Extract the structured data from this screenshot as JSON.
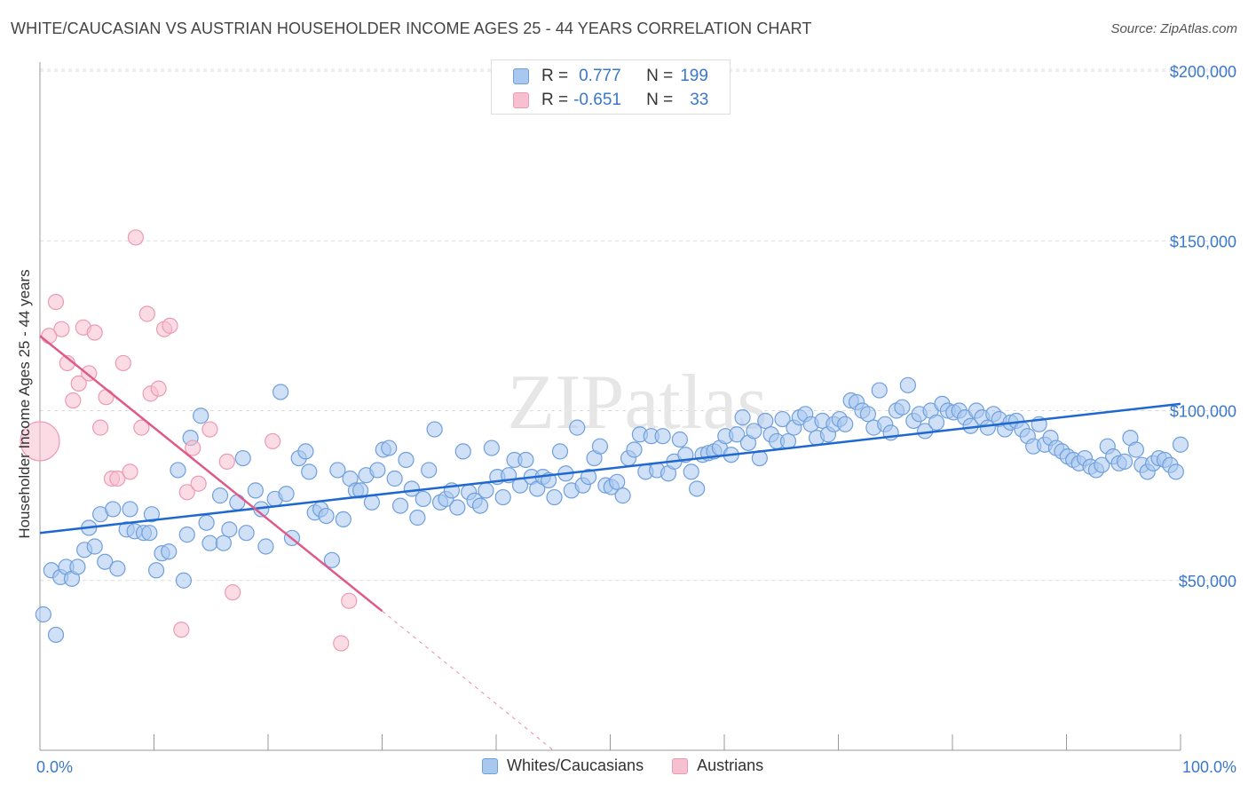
{
  "header": {
    "title": "WHITE/CAUCASIAN VS AUSTRIAN HOUSEHOLDER INCOME AGES 25 - 44 YEARS CORRELATION CHART",
    "source": "Source: ZipAtlas.com"
  },
  "legend": {
    "r_label": "R =",
    "n_label": "N =",
    "series": [
      {
        "r": "0.777",
        "n": "199"
      },
      {
        "r": "-0.651",
        "n": "33"
      }
    ]
  },
  "bottom_legend": [
    "Whites/Caucasians",
    "Austrians"
  ],
  "watermark": "ZIPatlas",
  "colors": {
    "blue_fill": "#a9c8f0",
    "blue_stroke": "#6f9fdc",
    "blue_line": "#1f68d0",
    "pink_fill": "#f7c0d0",
    "pink_stroke": "#ec9ab3",
    "pink_line": "#e05a88",
    "tick_text": "#3a78c9",
    "grid": "#dcdcdc"
  },
  "chart_data": {
    "type": "scatter",
    "title": "WHITE/CAUCASIAN VS AUSTRIAN HOUSEHOLDER INCOME AGES 25 - 44 YEARS CORRELATION CHART",
    "xlabel": "",
    "ylabel": "Householder Income Ages 25 - 44 years",
    "xlim": [
      0,
      100
    ],
    "ylim": [
      0,
      205000
    ],
    "x_tick_labels": [
      "0.0%",
      "100.0%"
    ],
    "y_ticks": [
      50000,
      100000,
      150000,
      200000
    ],
    "y_tick_labels": [
      "$50,000",
      "$100,000",
      "$150,000",
      "$200,000"
    ],
    "grid": true,
    "legend_position": "top-center",
    "series": [
      {
        "name": "Whites/Caucasians",
        "r": 0.777,
        "n": 199,
        "trend": {
          "x": [
            0,
            100
          ],
          "y": [
            64000,
            102000
          ]
        },
        "points": [
          [
            0.3,
            40000
          ],
          [
            1,
            53000
          ],
          [
            1.4,
            34000
          ],
          [
            1.8,
            51000
          ],
          [
            2.3,
            54000
          ],
          [
            2.8,
            50500
          ],
          [
            3.3,
            54000
          ],
          [
            3.9,
            59000
          ],
          [
            4.3,
            65500
          ],
          [
            4.8,
            60000
          ],
          [
            5.3,
            69500
          ],
          [
            5.7,
            55500
          ],
          [
            6.4,
            71000
          ],
          [
            6.8,
            53500
          ],
          [
            7.6,
            65000
          ],
          [
            7.9,
            71000
          ],
          [
            8.3,
            64500
          ],
          [
            9.1,
            64000
          ],
          [
            9.6,
            64000
          ],
          [
            9.8,
            69500
          ],
          [
            10.2,
            53000
          ],
          [
            10.7,
            58000
          ],
          [
            11.3,
            58500
          ],
          [
            12.1,
            82500
          ],
          [
            12.6,
            50000
          ],
          [
            12.9,
            63500
          ],
          [
            13.2,
            92000
          ],
          [
            14.1,
            98500
          ],
          [
            14.6,
            67000
          ],
          [
            14.9,
            61000
          ],
          [
            15.8,
            75000
          ],
          [
            16.1,
            61000
          ],
          [
            16.6,
            65000
          ],
          [
            17.3,
            73000
          ],
          [
            17.8,
            86000
          ],
          [
            18.1,
            64000
          ],
          [
            18.9,
            76500
          ],
          [
            19.4,
            71000
          ],
          [
            19.8,
            60000
          ],
          [
            20.6,
            74000
          ],
          [
            21.1,
            105500
          ],
          [
            21.6,
            75500
          ],
          [
            22.1,
            62500
          ],
          [
            22.7,
            86000
          ],
          [
            23.3,
            88000
          ],
          [
            23.6,
            82000
          ],
          [
            24.1,
            70000
          ],
          [
            24.6,
            71000
          ],
          [
            25.1,
            69000
          ],
          [
            25.6,
            56000
          ],
          [
            26.1,
            82500
          ],
          [
            26.6,
            68000
          ],
          [
            27.2,
            80000
          ],
          [
            27.7,
            76500
          ],
          [
            28.1,
            76500
          ],
          [
            28.6,
            81000
          ],
          [
            29.1,
            73000
          ],
          [
            29.6,
            82500
          ],
          [
            30.1,
            88500
          ],
          [
            30.6,
            89000
          ],
          [
            31.1,
            80000
          ],
          [
            31.6,
            72000
          ],
          [
            32.1,
            85500
          ],
          [
            32.6,
            77000
          ],
          [
            33.1,
            68500
          ],
          [
            33.6,
            74000
          ],
          [
            34.1,
            82500
          ],
          [
            34.6,
            94500
          ],
          [
            35.1,
            73000
          ],
          [
            35.6,
            74000
          ],
          [
            36.1,
            76500
          ],
          [
            36.6,
            71500
          ],
          [
            37.1,
            88000
          ],
          [
            37.6,
            76000
          ],
          [
            38.1,
            73500
          ],
          [
            38.6,
            72000
          ],
          [
            39.1,
            76500
          ],
          [
            39.6,
            89000
          ],
          [
            40.1,
            80500
          ],
          [
            40.6,
            74500
          ],
          [
            41.1,
            81000
          ],
          [
            41.6,
            85500
          ],
          [
            42.1,
            78000
          ],
          [
            42.6,
            85500
          ],
          [
            43.1,
            80500
          ],
          [
            43.6,
            77000
          ],
          [
            44.1,
            80500
          ],
          [
            44.6,
            79500
          ],
          [
            45.1,
            74500
          ],
          [
            45.6,
            88000
          ],
          [
            46.1,
            81500
          ],
          [
            46.6,
            76500
          ],
          [
            47.1,
            95000
          ],
          [
            47.6,
            78000
          ],
          [
            48.1,
            80500
          ],
          [
            48.6,
            86000
          ],
          [
            49.1,
            89500
          ],
          [
            49.6,
            78000
          ],
          [
            50.1,
            77500
          ],
          [
            50.6,
            79000
          ],
          [
            51.1,
            75000
          ],
          [
            51.6,
            86000
          ],
          [
            52.1,
            88500
          ],
          [
            52.6,
            93000
          ],
          [
            53.1,
            82000
          ],
          [
            53.6,
            92500
          ],
          [
            54.1,
            82500
          ],
          [
            54.6,
            92500
          ],
          [
            55.1,
            81500
          ],
          [
            55.6,
            85000
          ],
          [
            56.1,
            91500
          ],
          [
            56.6,
            87000
          ],
          [
            57.1,
            82000
          ],
          [
            57.6,
            77000
          ],
          [
            58.1,
            87000
          ],
          [
            58.6,
            87500
          ],
          [
            59.1,
            88000
          ],
          [
            59.6,
            89000
          ],
          [
            60.1,
            92500
          ],
          [
            60.6,
            87000
          ],
          [
            61.1,
            93000
          ],
          [
            61.6,
            98000
          ],
          [
            62.1,
            90500
          ],
          [
            62.6,
            94000
          ],
          [
            63.1,
            86000
          ],
          [
            63.6,
            97000
          ],
          [
            64.1,
            93000
          ],
          [
            64.6,
            91000
          ],
          [
            65.1,
            97500
          ],
          [
            65.6,
            91000
          ],
          [
            66.1,
            95000
          ],
          [
            66.6,
            98000
          ],
          [
            67.1,
            99000
          ],
          [
            67.6,
            96000
          ],
          [
            68.1,
            92000
          ],
          [
            68.6,
            97000
          ],
          [
            69.1,
            93000
          ],
          [
            69.6,
            96000
          ],
          [
            70.1,
            97500
          ],
          [
            70.6,
            96000
          ],
          [
            71.1,
            103000
          ],
          [
            71.6,
            102500
          ],
          [
            72.1,
            100000
          ],
          [
            72.6,
            99000
          ],
          [
            73.1,
            95000
          ],
          [
            73.6,
            106000
          ],
          [
            74.1,
            96000
          ],
          [
            74.6,
            93500
          ],
          [
            75.1,
            100000
          ],
          [
            75.6,
            101000
          ],
          [
            76.1,
            107500
          ],
          [
            76.6,
            97000
          ],
          [
            77.1,
            99000
          ],
          [
            77.6,
            94000
          ],
          [
            78.1,
            100000
          ],
          [
            78.6,
            96500
          ],
          [
            79.1,
            102000
          ],
          [
            79.6,
            100000
          ],
          [
            80.1,
            99500
          ],
          [
            80.6,
            100000
          ],
          [
            81.1,
            98000
          ],
          [
            81.6,
            95500
          ],
          [
            82.1,
            100000
          ],
          [
            82.6,
            98000
          ],
          [
            83.1,
            95000
          ],
          [
            83.6,
            99000
          ],
          [
            84.1,
            97500
          ],
          [
            84.6,
            94500
          ],
          [
            85.1,
            96500
          ],
          [
            85.6,
            97000
          ],
          [
            86.1,
            94500
          ],
          [
            86.6,
            92500
          ],
          [
            87.1,
            89500
          ],
          [
            87.6,
            96000
          ],
          [
            88.1,
            90000
          ],
          [
            88.6,
            92000
          ],
          [
            89.1,
            89000
          ],
          [
            89.6,
            88000
          ],
          [
            90.1,
            86500
          ],
          [
            90.6,
            85500
          ],
          [
            91.1,
            84500
          ],
          [
            91.6,
            86000
          ],
          [
            92.1,
            83500
          ],
          [
            92.6,
            82500
          ],
          [
            93.1,
            84000
          ],
          [
            93.6,
            89500
          ],
          [
            94.1,
            86500
          ],
          [
            94.6,
            84500
          ],
          [
            95.1,
            85000
          ],
          [
            95.6,
            92000
          ],
          [
            96.1,
            88500
          ],
          [
            96.6,
            84000
          ],
          [
            97.1,
            82000
          ],
          [
            97.6,
            84500
          ],
          [
            98.1,
            86000
          ],
          [
            98.6,
            85500
          ],
          [
            99.1,
            84000
          ],
          [
            99.6,
            82000
          ],
          [
            100,
            90000
          ]
        ]
      },
      {
        "name": "Austrians",
        "r": -0.651,
        "n": 33,
        "trend": {
          "x": [
            0,
            30
          ],
          "y": [
            122000,
            41000
          ],
          "dashed_extension": {
            "x": [
              30,
              45
            ],
            "y": [
              41000,
              0
            ]
          }
        },
        "points": [
          [
            0,
            91000
          ],
          [
            0.8,
            122000
          ],
          [
            1.4,
            132000
          ],
          [
            1.9,
            124000
          ],
          [
            2.4,
            114000
          ],
          [
            2.9,
            103000
          ],
          [
            3.4,
            108000
          ],
          [
            3.8,
            124500
          ],
          [
            4.3,
            111000
          ],
          [
            4.8,
            123000
          ],
          [
            5.3,
            95000
          ],
          [
            5.8,
            104000
          ],
          [
            6.3,
            80000
          ],
          [
            6.8,
            80000
          ],
          [
            7.3,
            114000
          ],
          [
            7.9,
            82000
          ],
          [
            8.4,
            151000
          ],
          [
            8.9,
            95000
          ],
          [
            9.4,
            128500
          ],
          [
            9.7,
            105000
          ],
          [
            10.4,
            106500
          ],
          [
            10.9,
            124000
          ],
          [
            11.4,
            125000
          ],
          [
            12.4,
            35500
          ],
          [
            12.9,
            76000
          ],
          [
            13.4,
            89000
          ],
          [
            13.9,
            78500
          ],
          [
            14.9,
            94500
          ],
          [
            16.4,
            85000
          ],
          [
            16.9,
            46500
          ],
          [
            20.4,
            91000
          ],
          [
            26.4,
            31500
          ],
          [
            27.1,
            44000
          ]
        ]
      }
    ]
  }
}
